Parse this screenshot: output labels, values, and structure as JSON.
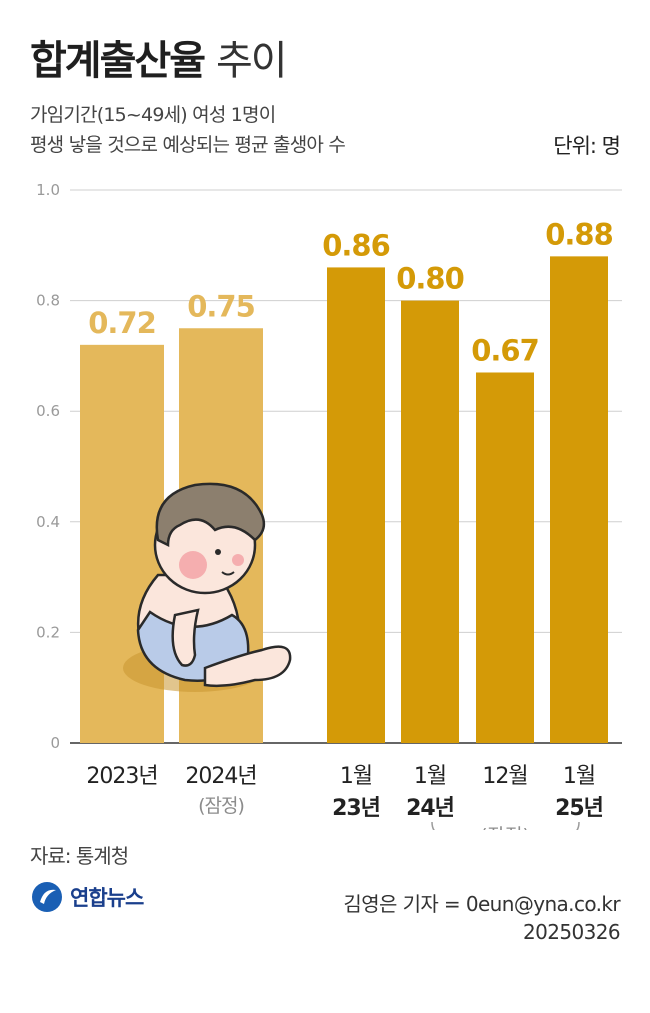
{
  "title": {
    "bold": "합계출산율",
    "light": "추이"
  },
  "subtitle": {
    "line1": "가임기간(15~49세) 여성 1명이",
    "line2": "평생 낳을 것으로 예상되는 평균 출생아 수"
  },
  "unit": "단위: 명",
  "chart_data": {
    "type": "bar",
    "ylim": [
      0,
      1.0
    ],
    "yticks": [
      "1.0",
      "0.8",
      "0.6",
      "0.4",
      "0.2",
      "0"
    ],
    "grid": true,
    "colors": {
      "annual": "#e4b85b",
      "monthly": "#d49a07",
      "grid": "#cfcfcf"
    },
    "bars": [
      {
        "group": "annual",
        "label": "2023년",
        "sublabel": "",
        "value": 0.72,
        "value_label": "0.72"
      },
      {
        "group": "annual",
        "label": "2024년",
        "sublabel": "(잠정)",
        "value": 0.75,
        "value_label": "0.75"
      },
      {
        "group": "monthly",
        "label": "1월",
        "sublabel": "23년",
        "value": 0.86,
        "value_label": "0.86"
      },
      {
        "group": "monthly",
        "label": "1월",
        "sublabel": "24년",
        "value": 0.8,
        "value_label": "0.80"
      },
      {
        "group": "monthly",
        "label": "12월",
        "sublabel": "",
        "value": 0.67,
        "value_label": "0.67"
      },
      {
        "group": "monthly",
        "label": "1월",
        "sublabel": "25년",
        "value": 0.88,
        "value_label": "0.88"
      }
    ],
    "bracket_note": "(잠정)"
  },
  "source": "자료: 통계청",
  "logo": "연합뉴스",
  "credit": {
    "line1": "김영은 기자 = 0eun@yna.co.kr",
    "line2": "20250326"
  }
}
